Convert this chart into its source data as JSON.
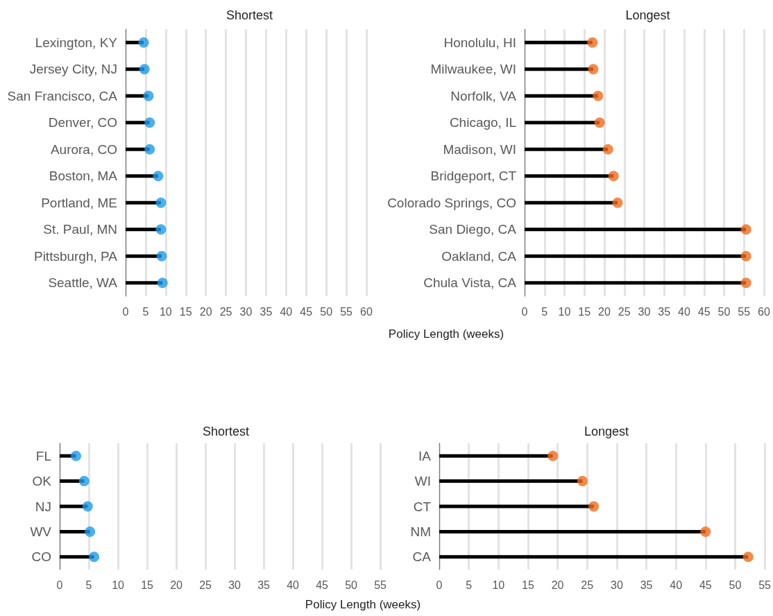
{
  "chart_data": [
    {
      "type": "lollipop",
      "title": "Shortest",
      "categories": [
        "Lexington, KY",
        "Jersey City, NJ",
        "San Francisco, CA",
        "Denver, CO",
        "Aurora, CO",
        "Boston, MA",
        "Portland, ME",
        "St. Paul, MN",
        "Pittsburgh, PA",
        "Seattle, WA"
      ],
      "values": [
        4.5,
        4.7,
        5.7,
        6,
        6,
        8.1,
        8.8,
        8.8,
        9,
        9.2
      ],
      "color": "#1e9be8",
      "orientation": "horizontal",
      "xlim": [
        0,
        60
      ],
      "xticks": [
        0,
        5,
        10,
        15,
        20,
        25,
        30,
        35,
        40,
        45,
        50,
        55,
        60
      ],
      "grid": "x",
      "marker": "circle"
    },
    {
      "type": "lollipop",
      "title": "Longest",
      "xlabel": "Policy Length (weeks)",
      "categories": [
        "Honolulu, HI",
        "Milwaukee, WI",
        "Norfolk, VA",
        "Chicago, IL",
        "Madison, WI",
        "Bridgeport, CT",
        "Colorado Springs, CO",
        "San Diego, CA",
        "Oakland, CA",
        "Chula Vista, CA"
      ],
      "values": [
        17,
        17.2,
        18.4,
        18.8,
        20.9,
        22.3,
        23.3,
        55.5,
        55.5,
        55.5
      ],
      "color": "#f26b1d",
      "orientation": "horizontal",
      "xlim": [
        0,
        60
      ],
      "xticks": [
        0,
        5,
        10,
        15,
        20,
        25,
        30,
        35,
        40,
        45,
        50,
        55,
        60
      ],
      "grid": "x",
      "marker": "circle"
    },
    {
      "type": "lollipop",
      "title": "Shortest",
      "categories": [
        "FL",
        "OK",
        "NJ",
        "WV",
        "CO"
      ],
      "values": [
        2.8,
        4.2,
        4.8,
        5.2,
        5.9
      ],
      "color": "#1e9be8",
      "orientation": "horizontal",
      "xlim": [
        0,
        55
      ],
      "xticks": [
        0,
        5,
        10,
        15,
        20,
        25,
        30,
        35,
        40,
        45,
        50,
        55
      ],
      "grid": "x",
      "marker": "circle"
    },
    {
      "type": "lollipop",
      "title": "Longest",
      "xlabel": "Policy Length (weeks)",
      "categories": [
        "IA",
        "WI",
        "CT",
        "NM",
        "CA"
      ],
      "values": [
        19.2,
        24.2,
        26.1,
        45,
        52.2
      ],
      "color": "#f26b1d",
      "orientation": "horizontal",
      "xlim": [
        0,
        55
      ],
      "xticks": [
        0,
        5,
        10,
        15,
        20,
        25,
        30,
        35,
        40,
        45,
        50,
        55
      ],
      "grid": "x",
      "marker": "circle"
    }
  ]
}
